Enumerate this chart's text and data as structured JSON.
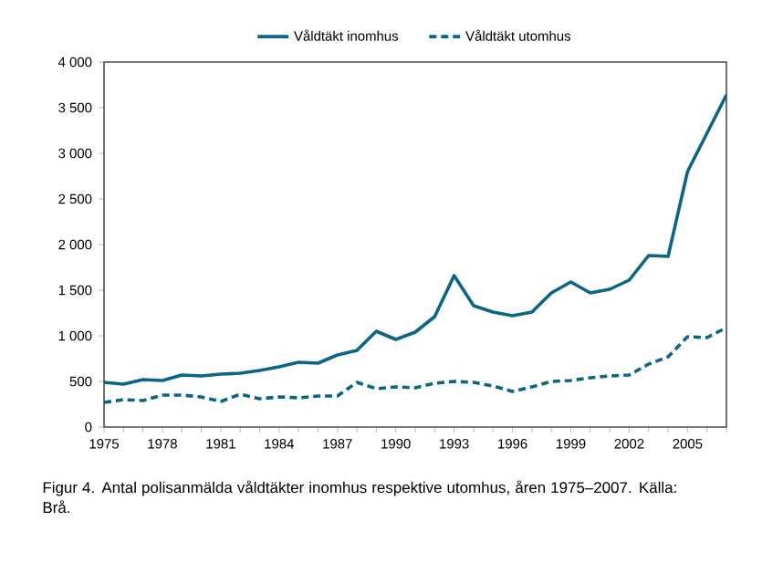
{
  "chart_data": {
    "type": "line",
    "x": [
      1975,
      1976,
      1977,
      1978,
      1979,
      1980,
      1981,
      1982,
      1983,
      1984,
      1985,
      1986,
      1987,
      1988,
      1989,
      1990,
      1991,
      1992,
      1993,
      1994,
      1995,
      1996,
      1997,
      1998,
      1999,
      2000,
      2001,
      2002,
      2003,
      2004,
      2005,
      2006,
      2007
    ],
    "series": [
      {
        "name": "Våldtäkt inomhus",
        "color": "#0a6587",
        "line_style": "solid",
        "values": [
          490,
          470,
          520,
          510,
          570,
          560,
          580,
          590,
          620,
          660,
          710,
          700,
          790,
          840,
          1050,
          960,
          1040,
          1210,
          1660,
          1330,
          1260,
          1220,
          1260,
          1470,
          1590,
          1470,
          1510,
          1610,
          1880,
          1870,
          2800,
          3220,
          3640
        ]
      },
      {
        "name": "Våldtäkt utomhus",
        "color": "#0a6587",
        "line_style": "dashed",
        "values": [
          270,
          300,
          290,
          350,
          350,
          330,
          280,
          360,
          310,
          330,
          320,
          340,
          340,
          490,
          420,
          440,
          430,
          480,
          500,
          490,
          450,
          390,
          440,
          500,
          510,
          540,
          560,
          570,
          690,
          770,
          990,
          980,
          1090
        ]
      }
    ],
    "xlim": [
      1975,
      2007
    ],
    "ylim": [
      0,
      4000
    ],
    "xticks": [
      1975,
      {
        "value": 1976,
        "label": null
      },
      {
        "value": 1977,
        "label": null
      },
      1978,
      {
        "value": 1979,
        "label": null
      },
      {
        "value": 1980,
        "label": null
      },
      1981,
      {
        "value": 1982,
        "label": null
      },
      {
        "value": 1983,
        "label": null
      },
      1984,
      {
        "value": 1985,
        "label": null
      },
      {
        "value": 1986,
        "label": null
      },
      1987,
      {
        "value": 1988,
        "label": null
      },
      {
        "value": 1989,
        "label": null
      },
      1990,
      {
        "value": 1991,
        "label": null
      },
      {
        "value": 1992,
        "label": null
      },
      1993,
      {
        "value": 1994,
        "label": null
      },
      {
        "value": 1995,
        "label": null
      },
      1996,
      {
        "value": 1997,
        "label": null
      },
      {
        "value": 1998,
        "label": null
      },
      1999,
      {
        "value": 2000,
        "label": null
      },
      {
        "value": 2001,
        "label": null
      },
      2002,
      {
        "value": 2003,
        "label": null
      },
      {
        "value": 2004,
        "label": null
      },
      2005,
      {
        "value": 2006,
        "label": null
      },
      {
        "value": 2007,
        "label": null
      }
    ],
    "yticks": [
      0,
      500,
      {
        "value": 1000,
        "label": "1 000"
      },
      {
        "value": 1500,
        "label": "1 500"
      },
      {
        "value": 2000,
        "label": "2 000"
      },
      {
        "value": 2500,
        "label": "2 500"
      },
      {
        "value": 3000,
        "label": "3 000"
      },
      {
        "value": 3500,
        "label": "3 500"
      },
      {
        "value": 4000,
        "label": "4 000"
      }
    ],
    "legend": "top",
    "grid": false,
    "marker": "none",
    "annotations": [
      "Figur 4. Antal polisanmälda våldtäkter inomhus respektive utomhus, åren 1975–2007. Källa: Brå."
    ]
  }
}
